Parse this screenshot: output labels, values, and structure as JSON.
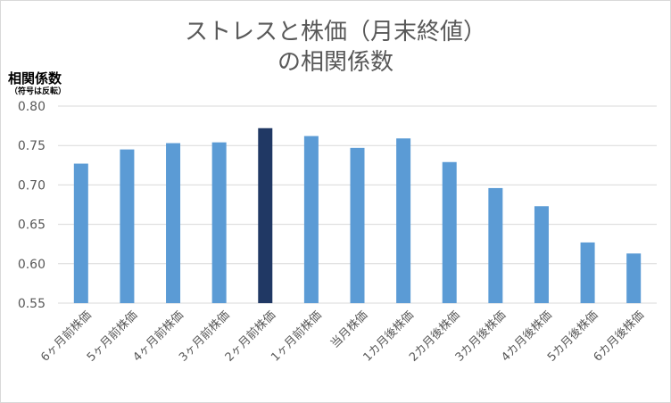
{
  "chart_data": {
    "type": "bar",
    "title_line1": "ストレスと株価（月末終値）",
    "title_line2": "の相関係数",
    "ylabel": "相関係数",
    "ylabel_note": "（符号は反転）",
    "xlabel": "",
    "ylim": [
      0.55,
      0.8
    ],
    "yticks": [
      "0.55",
      "0.60",
      "0.65",
      "0.70",
      "0.75",
      "0.80"
    ],
    "grid": true,
    "legend": "none",
    "categories": [
      "6ヶ月前株価",
      "5ヶ月前株価",
      "4ヶ月前株価",
      "3ヶ月前株価",
      "2ヶ月前株価",
      "1ヶ月前株価",
      "当月株価",
      "1カ月後株価",
      "2カ月後株価",
      "3カ月後株価",
      "4カ月後株価",
      "5カ月後株価",
      "6カ月後株価"
    ],
    "values": [
      0.727,
      0.745,
      0.753,
      0.754,
      0.772,
      0.762,
      0.747,
      0.759,
      0.729,
      0.696,
      0.673,
      0.627,
      0.613
    ],
    "highlight_index": 4,
    "colors": {
      "bar": "#5b9bd5",
      "highlight": "#203864",
      "grid": "#d9d9d9",
      "axis_text": "#595959"
    }
  }
}
